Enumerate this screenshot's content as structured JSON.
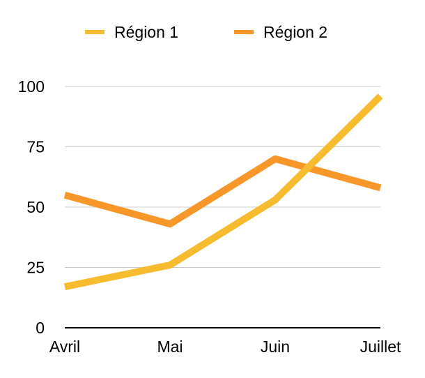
{
  "chart_data": {
    "type": "line",
    "title": "",
    "xlabel": "",
    "ylabel": "",
    "categories": [
      "Avril",
      "Mai",
      "Juin",
      "Juillet"
    ],
    "ylim": [
      0,
      100
    ],
    "yticks": [
      "0",
      "25",
      "50",
      "75",
      "100"
    ],
    "grid": true,
    "legend_position": "top",
    "series": [
      {
        "name": "Région 1",
        "values": [
          17,
          26,
          53,
          96
        ],
        "color": "#F6BB2F"
      },
      {
        "name": "Région 2",
        "values": [
          55,
          43,
          70,
          58
        ],
        "color": "#F7972A"
      }
    ]
  }
}
